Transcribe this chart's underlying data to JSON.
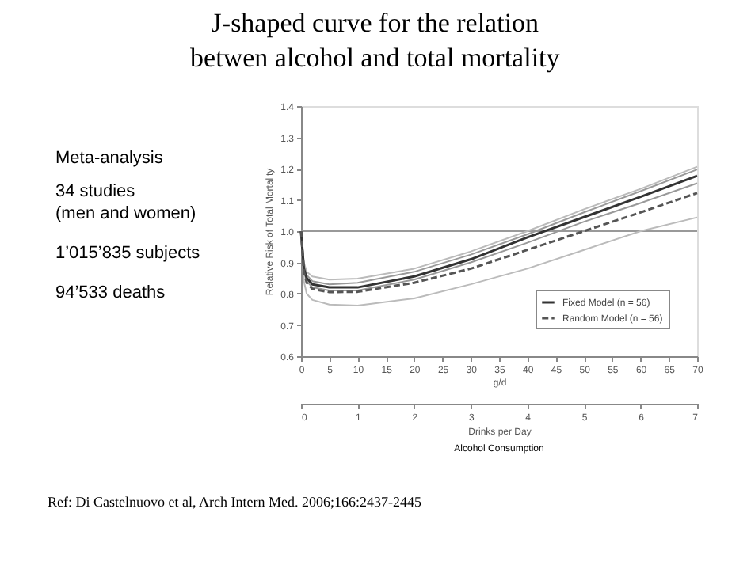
{
  "chart_data": {
    "type": "line",
    "title": "J-shaped curve for the relation betwen alcohol and total mortality",
    "xlabel": "g/d",
    "ylabel": "Relative Risk of Total Mortality",
    "x2label": "Drinks per Day",
    "x": [
      0,
      0.5,
      1,
      2,
      5,
      10,
      20,
      30,
      40,
      50,
      60,
      70
    ],
    "series": [
      {
        "color": "#bbbbbb",
        "line_style": "solid",
        "values": [
          1.0,
          0.9,
          0.87,
          0.855,
          0.845,
          0.848,
          0.88,
          0.935,
          1.0,
          1.07,
          1.135,
          1.206
        ]
      },
      {
        "color": "#999999",
        "line_style": "solid",
        "values": [
          1.0,
          0.89,
          0.86,
          0.84,
          0.83,
          0.835,
          0.87,
          0.925,
          0.99,
          1.06,
          1.128,
          1.197
        ]
      },
      {
        "name": "Fixed Model (n = 56)",
        "color": "#333333",
        "line_style": "solid",
        "values": [
          1.0,
          0.88,
          0.85,
          0.83,
          0.82,
          0.82,
          0.855,
          0.91,
          0.98,
          1.045,
          1.11,
          1.177
        ]
      },
      {
        "color": "#999999",
        "line_style": "solid",
        "values": [
          1.0,
          0.87,
          0.84,
          0.82,
          0.81,
          0.81,
          0.845,
          0.9,
          0.963,
          1.03,
          1.09,
          1.153
        ]
      },
      {
        "name": "Random Model (n = 56)",
        "color": "#555555",
        "line_style": "dashed",
        "values": [
          1.0,
          0.87,
          0.835,
          0.815,
          0.805,
          0.806,
          0.835,
          0.88,
          0.94,
          1.0,
          1.06,
          1.122
        ]
      },
      {
        "color": "#bbbbbb",
        "line_style": "solid",
        "values": [
          1.0,
          0.84,
          0.8,
          0.78,
          0.765,
          0.762,
          0.785,
          0.83,
          0.88,
          0.94,
          1.0,
          1.044
        ]
      }
    ],
    "xlim": [
      0,
      70
    ],
    "xticks": [
      0,
      5,
      10,
      15,
      20,
      25,
      30,
      35,
      40,
      45,
      50,
      55,
      60,
      65,
      70
    ],
    "ylim": [
      0.6,
      1.4
    ],
    "yticks": [
      0.6,
      0.7,
      0.8,
      0.9,
      {
        "value": 1.0,
        "label": "1.0"
      },
      1.1,
      1.2,
      1.3,
      1.4
    ],
    "x2lim": [
      0,
      7
    ],
    "x2ticks": [
      0,
      1,
      2,
      3,
      4,
      5,
      6,
      7
    ],
    "ref_lines": [
      {
        "axis": "y",
        "value": 1.0,
        "color": "#999999"
      }
    ],
    "legend": "bottom right",
    "grid": false,
    "annotations": [
      "Meta-analysis",
      "34 studies",
      "(men and women)",
      "1’015’835 subjects",
      "94’533 deaths",
      "Alcohol Consumption",
      "Ref: Di Castelnuovo et al, Arch Intern Med. 2006;166:2437-2445"
    ]
  }
}
